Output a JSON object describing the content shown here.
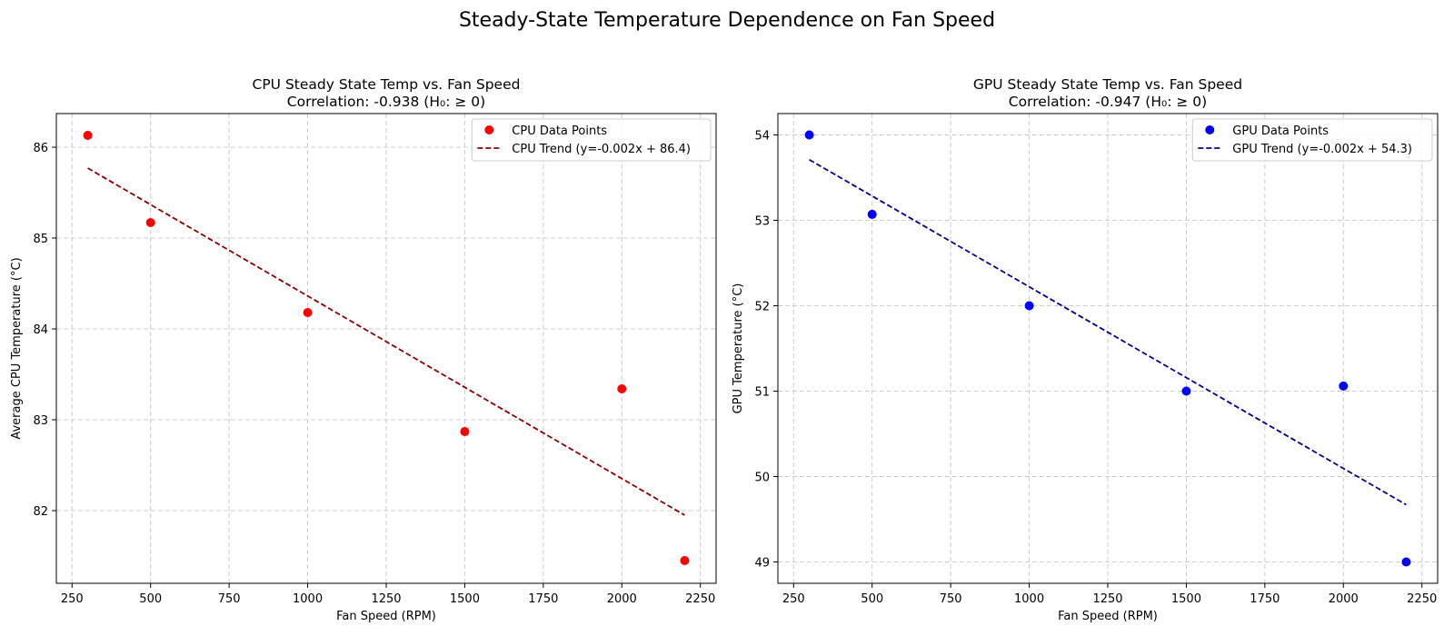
{
  "figure": {
    "suptitle": "Steady-State Temperature Dependence on Fan Speed"
  },
  "chart_data": [
    {
      "type": "scatter",
      "title_line1": "CPU Steady State Temp vs. Fan Speed",
      "title_line2": "Correlation: -0.938 (H₀: ≥ 0)",
      "xlabel": "Fan Speed (RPM)",
      "ylabel": "Average CPU Temperature (°C)",
      "xlim": [
        200,
        2300
      ],
      "ylim": [
        81.2,
        86.37
      ],
      "xticks": [
        250,
        500,
        750,
        1000,
        1250,
        1500,
        1750,
        2000,
        2250
      ],
      "yticks": [
        82,
        83,
        84,
        85,
        86
      ],
      "grid": true,
      "legend_position": "top-right",
      "series": [
        {
          "name": "CPU Data Points",
          "kind": "scatter",
          "color": "#ff0000",
          "x": [
            300,
            500,
            1000,
            1500,
            2000,
            2200
          ],
          "y": [
            86.13,
            85.17,
            84.18,
            82.87,
            83.34,
            81.45
          ]
        },
        {
          "name": "CPU Trend (y=-0.002x + 86.4)",
          "kind": "line",
          "style": "dashed",
          "color": "#8b0000",
          "x": [
            300,
            2200
          ],
          "y": [
            85.77,
            81.95
          ]
        }
      ]
    },
    {
      "type": "scatter",
      "title_line1": "GPU Steady State Temp vs. Fan Speed",
      "title_line2": "Correlation: -0.947 (H₀: ≥ 0)",
      "xlabel": "Fan Speed (RPM)",
      "ylabel": "GPU Temperature (°C)",
      "xlim": [
        200,
        2300
      ],
      "ylim": [
        48.75,
        54.25
      ],
      "xticks": [
        250,
        500,
        750,
        1000,
        1250,
        1500,
        1750,
        2000,
        2250
      ],
      "yticks": [
        49,
        50,
        51,
        52,
        53,
        54
      ],
      "grid": true,
      "legend_position": "top-right",
      "series": [
        {
          "name": "GPU Data Points",
          "kind": "scatter",
          "color": "#0000ff",
          "x": [
            300,
            500,
            1000,
            1500,
            2000,
            2200
          ],
          "y": [
            54.0,
            53.07,
            52.0,
            51.0,
            51.06,
            49.0
          ]
        },
        {
          "name": "GPU Trend (y=-0.002x + 54.3)",
          "kind": "line",
          "style": "dashed",
          "color": "#00008b",
          "x": [
            300,
            2200
          ],
          "y": [
            53.71,
            49.67
          ]
        }
      ]
    }
  ]
}
